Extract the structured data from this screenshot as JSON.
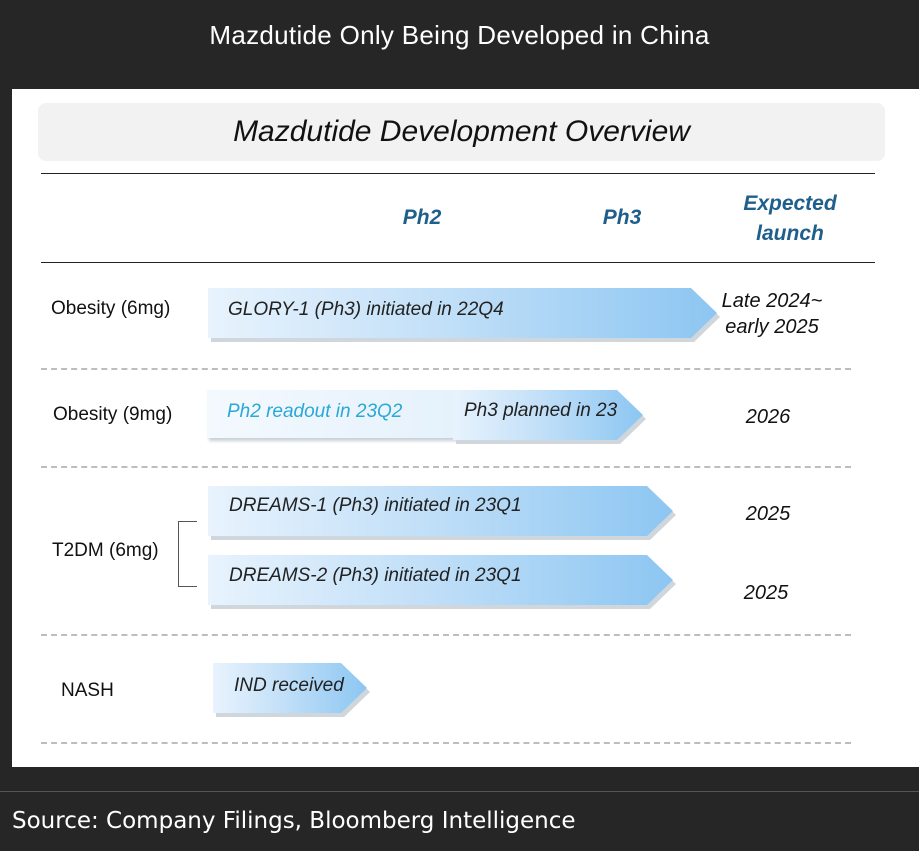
{
  "header": {
    "title": "Mazdutide Only Being Developed in China"
  },
  "panel": {
    "title": "Mazdutide Development Overview",
    "columns": {
      "ph2": "Ph2",
      "ph3": "Ph3",
      "expected_launch": "Expected launch"
    }
  },
  "rows": {
    "obesity_6mg": {
      "label": "Obesity (6mg)",
      "bar": "GLORY-1 (Ph3) initiated in 22Q4",
      "launch": "Late 2024~ early 2025"
    },
    "obesity_9mg": {
      "label": "Obesity (9mg)",
      "ph2_bar": "Ph2 readout in 23Q2",
      "ph3_bar": "Ph3 planned in 23",
      "launch": "2026"
    },
    "t2dm_6mg": {
      "label": "T2DM (6mg)",
      "bar1": "DREAMS-1 (Ph3) initiated in 23Q1",
      "bar1_launch": "2025",
      "bar2": "DREAMS-2 (Ph3) initiated in 23Q1",
      "bar2_launch": "2025"
    },
    "nash": {
      "label": "NASH",
      "bar": "IND received"
    }
  },
  "footer": {
    "source": "Source: Company Filings, Bloomberg Intelligence"
  },
  "colors": {
    "header_bg": "#262626",
    "column_heading": "#1f5f8b",
    "arrow_end": "#8cc6f2",
    "readout_text": "#2aa8d6"
  }
}
